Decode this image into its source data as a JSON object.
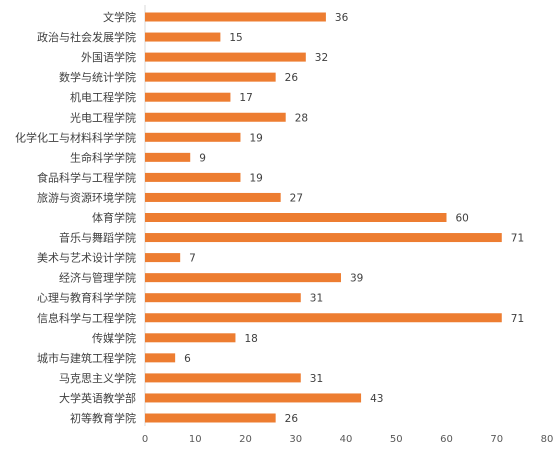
{
  "chart_data": {
    "type": "bar",
    "orientation": "horizontal",
    "categories": [
      "文学院",
      "政治与社会发展学院",
      "外国语学院",
      "数学与统计学院",
      "机电工程学院",
      "光电工程学院",
      "化学化工与材料科学学院",
      "生命科学学院",
      "食品科学与工程学院",
      "旅游与资源环境学院",
      "体育学院",
      "音乐与舞蹈学院",
      "美术与艺术设计学院",
      "经济与管理学院",
      "心理与教育科学学院",
      "信息科学与工程学院",
      "传媒学院",
      "城市与建筑工程学院",
      "马克思主义学院",
      "大学英语教学部",
      "初等教育学院"
    ],
    "values": [
      36,
      15,
      32,
      26,
      17,
      28,
      19,
      9,
      19,
      27,
      60,
      71,
      7,
      39,
      31,
      71,
      18,
      6,
      31,
      43,
      26
    ],
    "xlim": [
      0,
      80
    ],
    "xticks": [
      0,
      10,
      20,
      30,
      40,
      50,
      60,
      70,
      80
    ],
    "data_labels": true,
    "grid": false,
    "bar_color": "#ED7D31",
    "axis_color": "#D9D9D9",
    "text_color": "#404040"
  }
}
